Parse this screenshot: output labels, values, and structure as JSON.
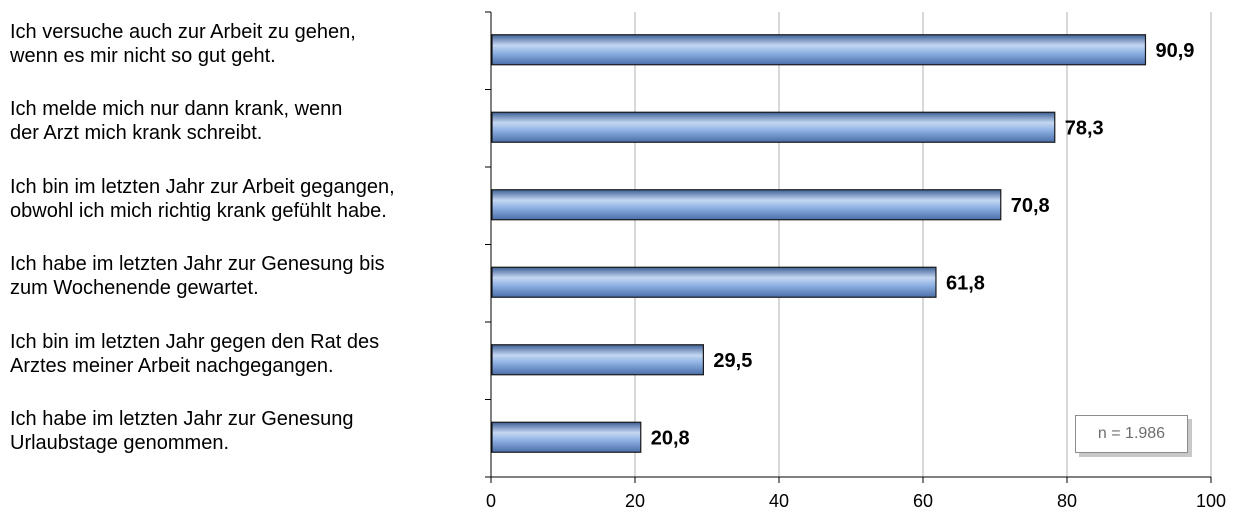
{
  "chart_data": {
    "type": "bar",
    "orientation": "horizontal",
    "categories": [
      "Ich versuche auch zur Arbeit zu gehen,\nwenn es mir nicht so gut geht.",
      "Ich melde mich nur dann krank, wenn\nder Arzt mich krank schreibt.",
      "Ich bin im letzten Jahr zur Arbeit gegangen,\nobwohl ich mich richtig krank gefühlt habe.",
      "Ich habe im letzten Jahr zur Genesung bis\nzum Wochenende gewartet.",
      "Ich bin im letzten Jahr gegen den Rat des\nArztes meiner Arbeit nachgegangen.",
      "Ich habe im letzten Jahr zur Genesung\nUrlaubstage genommen."
    ],
    "values": [
      90.9,
      78.3,
      70.8,
      61.8,
      29.5,
      20.8
    ],
    "data_labels": [
      "90,9",
      "78,3",
      "70,8",
      "61,8",
      "29,5",
      "20,8"
    ],
    "xlim": [
      0,
      100
    ],
    "xticks": [
      0,
      20,
      40,
      60,
      80,
      100
    ],
    "grid": true,
    "bar_color": "#6f9bd6",
    "annotation": "n = 1.986"
  }
}
